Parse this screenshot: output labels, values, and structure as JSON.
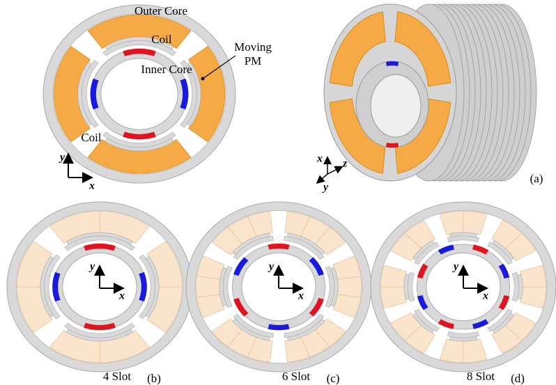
{
  "panel_a": {
    "outer_core": "Outer Core",
    "coil_top": "Coil",
    "moving_pm": [
      "Moving",
      "PM"
    ],
    "inner_core": "Inner Core",
    "coil_left": "Coil",
    "axis_y": "y",
    "axis_x": "x",
    "iso_x": "x",
    "iso_z": "z",
    "iso_y": "y",
    "tag": "(a)"
  },
  "panels": [
    {
      "caption": "4 Slot",
      "tag": "(b)",
      "axis_y": "y",
      "axis_x": "x"
    },
    {
      "caption": "6 Slot",
      "tag": "(c)",
      "axis_y": "y",
      "axis_x": "x"
    },
    {
      "caption": "8 Slot",
      "tag": "(d)",
      "axis_y": "y",
      "axis_x": "x"
    }
  ]
}
